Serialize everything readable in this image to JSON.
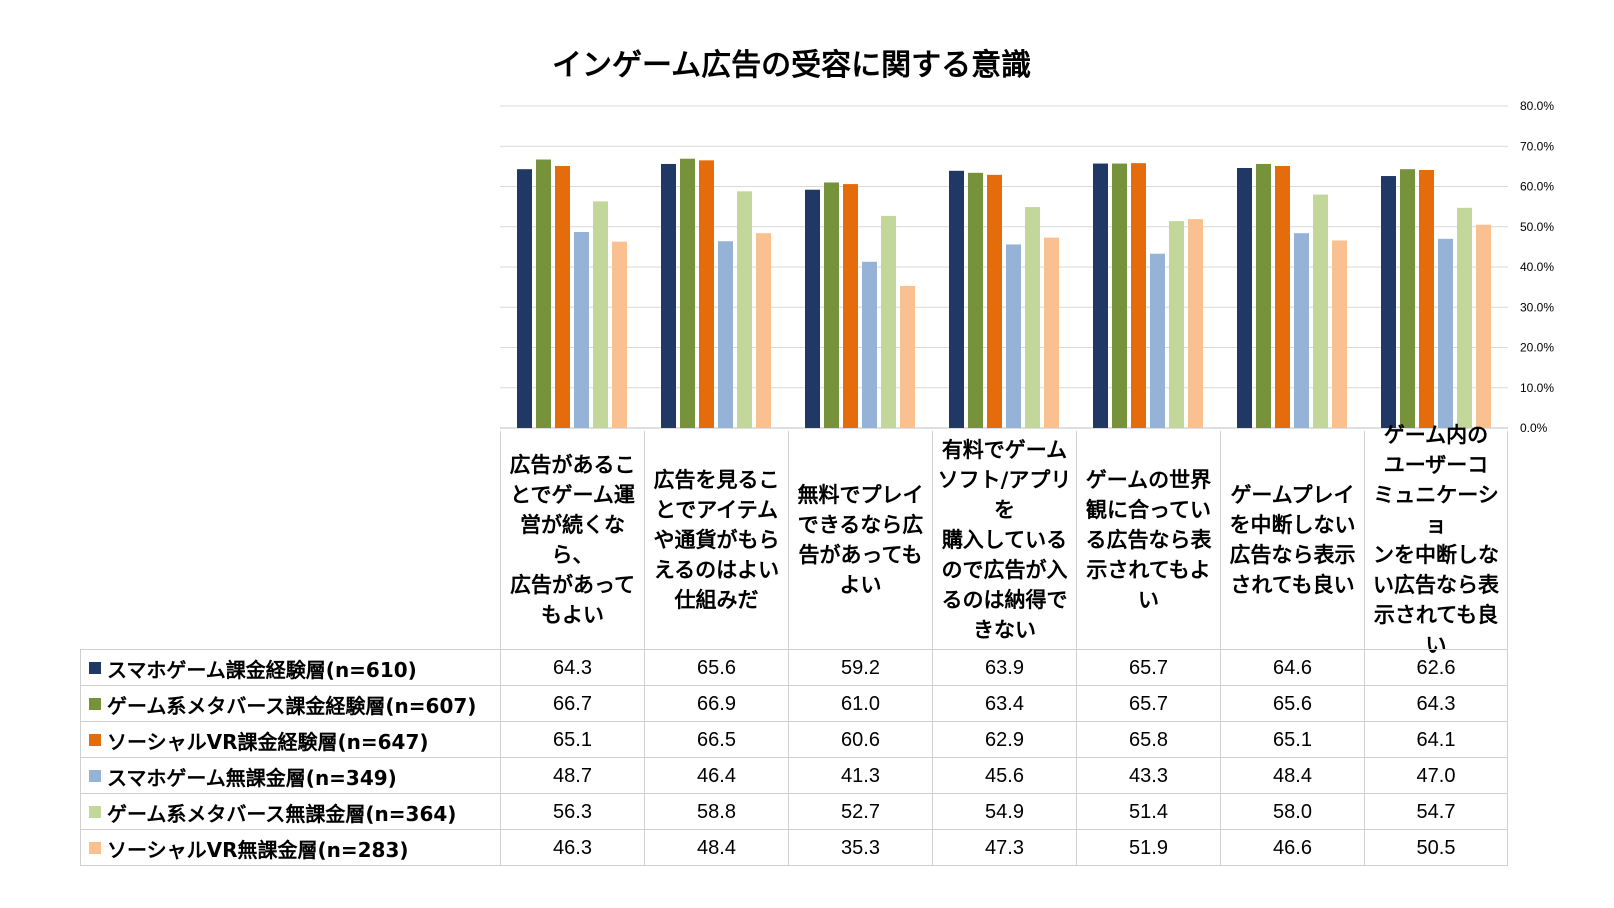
{
  "chart_data": {
    "type": "bar",
    "title": "インゲーム広告の受容に関する意識",
    "ylim": [
      0,
      80
    ],
    "yticks": [
      "0.0%",
      "10.0%",
      "20.0%",
      "30.0%",
      "40.0%",
      "50.0%",
      "60.0%",
      "70.0%",
      "80.0%"
    ],
    "y_axis_position": "right",
    "grid": true,
    "legend": "data-table-below",
    "categories": [
      "広告があることでゲーム運営が続くなら、広告があってもよい",
      "広告を見ることでアイテムや通貨がもらえるのはよい仕組みだ",
      "無料でプレイできるなら広告があってもよい",
      "有料でゲームソフト/アプリを購入しているので広告が入るのは納得できない",
      "ゲームの世界観に合っている広告なら表示されてもよい",
      "ゲームプレイを中断しない広告なら表示されても良い",
      "ゲーム内のユーザーコミュニケーションを中断しない広告なら表示されても良い"
    ],
    "categories_wrapped": [
      [
        "広告があるこ",
        "とでゲーム運",
        "営が続くなら、",
        "広告があって",
        "もよい"
      ],
      [
        "広告を見るこ",
        "とでアイテム",
        "や通貨がもら",
        "えるのはよい",
        "仕組みだ"
      ],
      [
        "無料でプレイ",
        "できるなら広",
        "告があっても",
        "よい"
      ],
      [
        "有料でゲーム",
        "ソフト/アプリを",
        "購入している",
        "ので広告が入",
        "るのは納得で",
        "きない"
      ],
      [
        "ゲームの世界",
        "観に合ってい",
        "る広告なら表",
        "示されてもよ",
        "い"
      ],
      [
        "ゲームプレイ",
        "を中断しない",
        "広告なら表示",
        "されても良い"
      ],
      [
        "ゲーム内の",
        "ユーザーコ",
        "ミュニケーショ",
        "ンを中断しな",
        "い広告なら表",
        "示されても良",
        "い"
      ]
    ],
    "series": [
      {
        "name": "スマホゲーム課金経験層(n=610)",
        "color": "#1f3864",
        "values": [
          "64.3",
          "65.6",
          "59.2",
          "63.9",
          "65.7",
          "64.6",
          "62.6"
        ]
      },
      {
        "name": "ゲーム系メタバース課金経験層(n=607)",
        "color": "#76933c",
        "values": [
          "66.7",
          "66.9",
          "61.0",
          "63.4",
          "65.7",
          "65.6",
          "64.3"
        ]
      },
      {
        "name": "ソーシャルVR課金経験層(n=647)",
        "color": "#e46c0a",
        "values": [
          "65.1",
          "66.5",
          "60.6",
          "62.9",
          "65.8",
          "65.1",
          "64.1"
        ]
      },
      {
        "name": "スマホゲーム無課金層(n=349)",
        "color": "#95b3d7",
        "values": [
          "48.7",
          "46.4",
          "41.3",
          "45.6",
          "43.3",
          "48.4",
          "47.0"
        ]
      },
      {
        "name": "ゲーム系メタバース無課金層(n=364)",
        "color": "#c4d79b",
        "values": [
          "56.3",
          "58.8",
          "52.7",
          "54.9",
          "51.4",
          "58.0",
          "54.7"
        ]
      },
      {
        "name": "ソーシャルVR無課金層(n=283)",
        "color": "#fac090",
        "values": [
          "46.3",
          "48.4",
          "35.3",
          "47.3",
          "51.9",
          "46.6",
          "50.5"
        ]
      }
    ]
  }
}
